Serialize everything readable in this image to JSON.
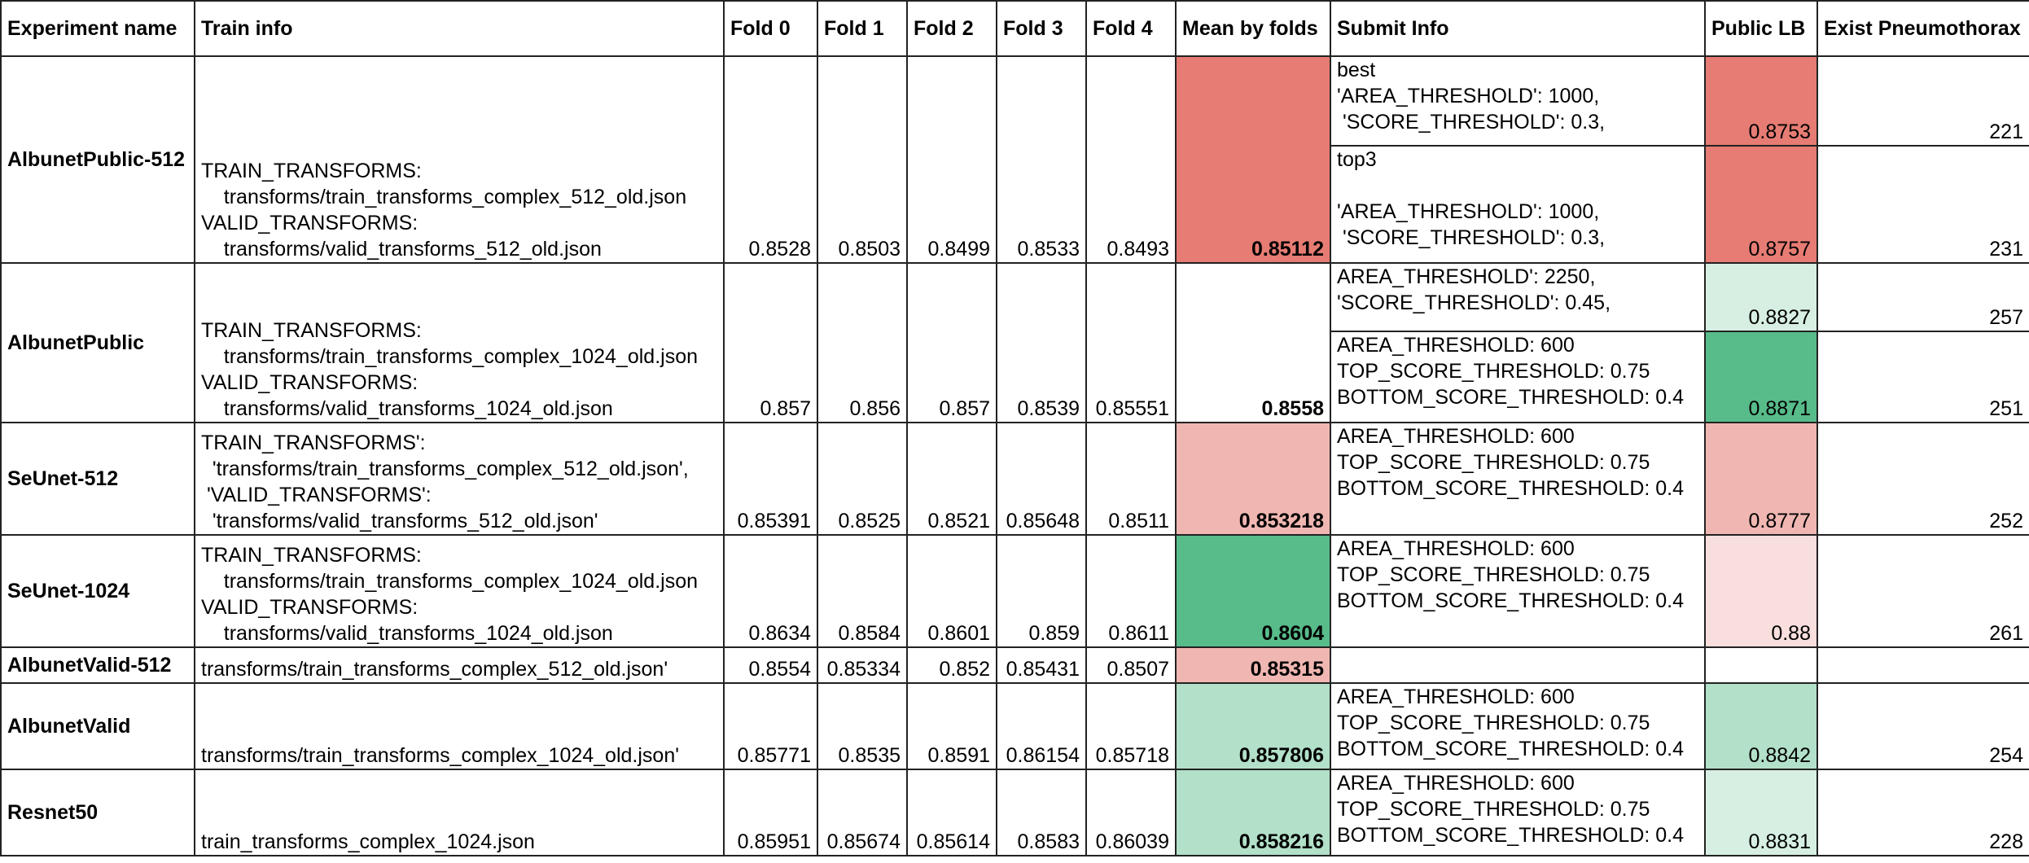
{
  "colors": {
    "red_strong": "#e67c73",
    "red_mid": "#ed9e98",
    "red_light": "#f0b7b2",
    "red_faint": "#f8dedc",
    "green_strong": "#57bb8a",
    "green_mid": "#b2e0c9",
    "green_light": "#d6efe2"
  },
  "headers": [
    "Experiment name",
    "Train info",
    "Fold 0",
    "Fold 1",
    "Fold 2",
    "Fold 3",
    "Fold 4",
    "Mean by folds",
    "Submit Info",
    "Public LB",
    "Exist Pneumothorax"
  ],
  "rows": [
    {
      "name": "AlbunetPublic-512",
      "train": "TRAIN_TRANSFORMS:\n    transforms/train_transforms_complex_512_old.json\nVALID_TRANSFORMS:\n    transforms/valid_transforms_512_old.json",
      "folds": [
        "0.8528",
        "0.8503",
        "0.8499",
        "0.8533",
        "0.8493"
      ],
      "mean": "0.85112",
      "mean_color": "red_strong",
      "submits": [
        {
          "info": "best\n'AREA_THRESHOLD': 1000,\n 'SCORE_THRESHOLD': 0.3,",
          "lb": "0.8753",
          "lb_color": "red_strong",
          "exist": "221"
        },
        {
          "info": "top3\n\n'AREA_THRESHOLD': 1000,\n 'SCORE_THRESHOLD': 0.3,",
          "lb": "0.8757",
          "lb_color": "red_strong",
          "exist": "231"
        }
      ]
    },
    {
      "name": "AlbunetPublic",
      "train": "TRAIN_TRANSFORMS:\n    transforms/train_transforms_complex_1024_old.json\nVALID_TRANSFORMS:\n    transforms/valid_transforms_1024_old.json",
      "folds": [
        "0.857",
        "0.856",
        "0.857",
        "0.8539",
        "0.85551"
      ],
      "mean": "0.8558",
      "mean_color": "",
      "submits": [
        {
          "info": "AREA_THRESHOLD': 2250,\n'SCORE_THRESHOLD': 0.45,",
          "lb": "0.8827",
          "lb_color": "green_light",
          "exist": "257"
        },
        {
          "info": "AREA_THRESHOLD: 600\nTOP_SCORE_THRESHOLD: 0.75\nBOTTOM_SCORE_THRESHOLD: 0.4",
          "lb": "0.8871",
          "lb_color": "green_strong",
          "exist": "251"
        }
      ]
    },
    {
      "name": "SeUnet-512",
      "train": "TRAIN_TRANSFORMS':\n  'transforms/train_transforms_complex_512_old.json',\n 'VALID_TRANSFORMS':\n  'transforms/valid_transforms_512_old.json'",
      "folds": [
        "0.85391",
        "0.8525",
        "0.8521",
        "0.85648",
        "0.8511"
      ],
      "mean": "0.853218",
      "mean_color": "red_light",
      "submits": [
        {
          "info": "AREA_THRESHOLD: 600\nTOP_SCORE_THRESHOLD: 0.75\nBOTTOM_SCORE_THRESHOLD: 0.4",
          "lb": "0.8777",
          "lb_color": "red_light",
          "exist": "252"
        }
      ]
    },
    {
      "name": "SeUnet-1024",
      "train": "TRAIN_TRANSFORMS:\n    transforms/train_transforms_complex_1024_old.json\nVALID_TRANSFORMS:\n    transforms/valid_transforms_1024_old.json",
      "folds": [
        "0.8634",
        "0.8584",
        "0.8601",
        "0.859",
        "0.8611"
      ],
      "mean": "0.8604",
      "mean_color": "green_strong",
      "submits": [
        {
          "info": "AREA_THRESHOLD: 600\nTOP_SCORE_THRESHOLD: 0.75\nBOTTOM_SCORE_THRESHOLD: 0.4",
          "lb": "0.88",
          "lb_color": "red_faint",
          "exist": "261"
        }
      ]
    },
    {
      "name": "AlbunetValid-512",
      "train": "transforms/train_transforms_complex_512_old.json'",
      "folds": [
        "0.8554",
        "0.85334",
        "0.852",
        "0.85431",
        "0.8507"
      ],
      "mean": "0.85315",
      "mean_color": "red_light",
      "submits": [
        {
          "info": "",
          "lb": "",
          "lb_color": "",
          "exist": ""
        }
      ]
    },
    {
      "name": "AlbunetValid",
      "train": "transforms/train_transforms_complex_1024_old.json'",
      "folds": [
        "0.85771",
        "0.8535",
        "0.8591",
        "0.86154",
        "0.85718"
      ],
      "mean": "0.857806",
      "mean_color": "green_mid",
      "submits": [
        {
          "info": "AREA_THRESHOLD: 600\nTOP_SCORE_THRESHOLD: 0.75\nBOTTOM_SCORE_THRESHOLD: 0.4",
          "lb": "0.8842",
          "lb_color": "green_mid",
          "exist": "254"
        }
      ]
    },
    {
      "name": "Resnet50",
      "train": "train_transforms_complex_1024.json",
      "folds": [
        "0.85951",
        "0.85674",
        "0.85614",
        "0.8583",
        "0.86039"
      ],
      "mean": "0.858216",
      "mean_color": "green_mid",
      "submits": [
        {
          "info": "AREA_THRESHOLD: 600\nTOP_SCORE_THRESHOLD: 0.75\nBOTTOM_SCORE_THRESHOLD: 0.4",
          "lb": "0.8831",
          "lb_color": "green_light",
          "exist": "228"
        }
      ]
    }
  ]
}
